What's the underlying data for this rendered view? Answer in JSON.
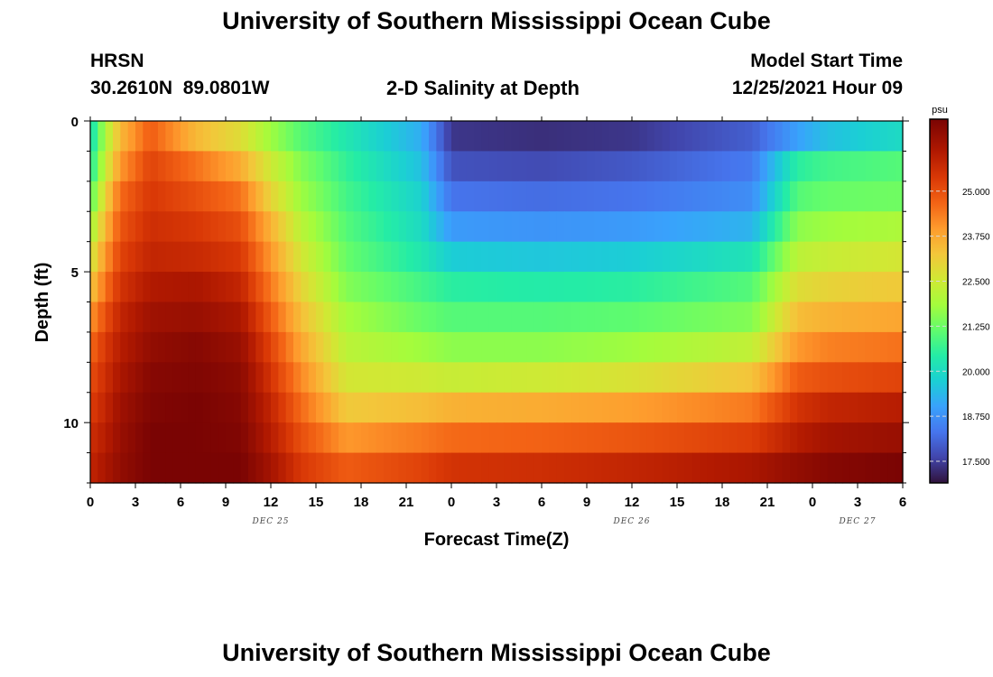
{
  "header": {
    "title": "University of Southern Mississippi Ocean Cube",
    "station": "HRSN",
    "coords": "30.2610N  89.0801W",
    "subtitle": "2-D Salinity at Depth",
    "model_label": "Model Start Time",
    "model_time": "12/25/2021 Hour 09"
  },
  "footer": {
    "title": "University of Southern Mississippi Ocean Cube"
  },
  "chart_data": {
    "type": "heatmap",
    "title": "2-D Salinity at Depth",
    "xlabel": "Forecast Time(Z)",
    "ylabel": "Depth (ft)",
    "colorbar_unit": "psu",
    "x_tick_labels": [
      "0",
      "3",
      "6",
      "9",
      "12",
      "15",
      "18",
      "21",
      "0",
      "3",
      "6",
      "9",
      "12",
      "15",
      "18",
      "21",
      "0",
      "3",
      "6"
    ],
    "x_range_hours": [
      0,
      54
    ],
    "date_labels": [
      {
        "text": "DEC 25",
        "hour": 12
      },
      {
        "text": "DEC 26",
        "hour": 36
      },
      {
        "text": "DEC 27",
        "hour": 51
      }
    ],
    "y_ticks": [
      0,
      5,
      10
    ],
    "y_range_ft": [
      0,
      12
    ],
    "color_range_psu": [
      16.9,
      27.0
    ],
    "colorbar_ticks": [
      "25.000",
      "23.750",
      "22.500",
      "21.250",
      "20.000",
      "18.750",
      "17.500"
    ],
    "colorbar_tick_values": [
      25.0,
      23.75,
      22.5,
      21.25,
      20.0,
      18.75,
      17.5
    ],
    "depth_levels_ft": [
      0.5,
      1.5,
      2.5,
      3.5,
      4.5,
      5.5,
      6.5,
      7.5,
      8.5,
      9.5,
      10.5,
      11.5
    ],
    "salinity_psu": {
      "by_depth_hour_keypoints": [
        {
          "depth_ft": 0.5,
          "h": [
            0,
            1,
            2,
            4,
            7,
            10,
            12,
            14,
            17,
            22,
            24,
            30,
            36,
            44,
            47,
            49,
            54
          ],
          "v": [
            20.0,
            22.0,
            23.5,
            24.8,
            23.5,
            22.8,
            21.8,
            21.0,
            20.3,
            19.2,
            17.4,
            17.3,
            17.4,
            18.0,
            19.0,
            19.5,
            20.0
          ]
        },
        {
          "depth_ft": 1.5,
          "h": [
            0,
            1,
            2,
            4,
            7,
            10,
            12,
            14,
            17,
            22,
            24,
            30,
            36,
            44,
            47,
            49,
            54
          ],
          "v": [
            20.3,
            22.4,
            24.0,
            25.2,
            24.5,
            23.7,
            22.5,
            21.5,
            20.6,
            19.5,
            17.8,
            17.7,
            17.9,
            18.4,
            20.5,
            20.8,
            21.0
          ]
        },
        {
          "depth_ft": 2.5,
          "h": [
            0,
            1,
            2,
            4,
            7,
            10,
            12,
            14,
            17,
            22,
            24,
            30,
            36,
            44,
            47,
            49,
            54
          ],
          "v": [
            21.0,
            23.0,
            24.6,
            25.4,
            25.0,
            24.5,
            23.0,
            21.8,
            20.8,
            19.8,
            18.3,
            18.2,
            18.3,
            18.7,
            21.0,
            21.2,
            21.3
          ]
        },
        {
          "depth_ft": 3.5,
          "h": [
            0,
            1,
            2,
            4,
            7,
            10,
            12,
            14,
            17,
            22,
            24,
            30,
            36,
            44,
            47,
            49,
            54
          ],
          "v": [
            21.8,
            23.5,
            24.9,
            25.6,
            25.4,
            25.0,
            23.6,
            22.2,
            21.0,
            20.0,
            18.9,
            18.8,
            18.9,
            19.3,
            21.6,
            21.8,
            22.0
          ]
        },
        {
          "depth_ft": 4.5,
          "h": [
            0,
            1,
            2,
            4,
            7,
            10,
            12,
            14,
            17,
            22,
            24,
            30,
            36,
            44,
            47,
            49,
            54
          ],
          "v": [
            22.5,
            24.0,
            25.2,
            25.8,
            25.7,
            25.4,
            24.0,
            22.6,
            21.2,
            20.3,
            19.7,
            19.6,
            19.7,
            20.2,
            22.2,
            22.4,
            22.6
          ]
        },
        {
          "depth_ft": 5.5,
          "h": [
            0,
            1,
            2,
            4,
            7,
            10,
            12,
            14,
            17,
            22,
            24,
            30,
            36,
            44,
            47,
            49,
            54
          ],
          "v": [
            23.2,
            24.5,
            25.5,
            26.1,
            26.2,
            25.8,
            24.4,
            23.0,
            21.5,
            20.8,
            20.5,
            20.4,
            20.5,
            21.0,
            22.8,
            23.0,
            23.2
          ]
        },
        {
          "depth_ft": 6.5,
          "h": [
            0,
            1,
            2,
            4,
            7,
            10,
            12,
            14,
            17,
            22,
            24,
            30,
            36,
            44,
            47,
            49,
            54
          ],
          "v": [
            24.0,
            25.0,
            25.8,
            26.4,
            26.5,
            26.2,
            24.8,
            23.4,
            21.9,
            21.2,
            21.0,
            21.0,
            21.1,
            21.5,
            23.4,
            23.6,
            23.8
          ]
        },
        {
          "depth_ft": 7.5,
          "h": [
            0,
            1,
            2,
            4,
            7,
            10,
            12,
            14,
            17,
            22,
            24,
            30,
            36,
            44,
            47,
            49,
            54
          ],
          "v": [
            24.6,
            25.4,
            26.0,
            26.6,
            26.8,
            26.5,
            25.2,
            23.8,
            22.2,
            21.8,
            21.6,
            21.6,
            21.8,
            22.3,
            24.0,
            24.3,
            24.5
          ]
        },
        {
          "depth_ft": 8.5,
          "h": [
            0,
            1,
            2,
            4,
            7,
            10,
            12,
            14,
            17,
            22,
            24,
            30,
            36,
            44,
            47,
            49,
            54
          ],
          "v": [
            25.0,
            25.6,
            26.2,
            26.8,
            26.9,
            26.7,
            25.5,
            24.2,
            22.6,
            22.5,
            22.4,
            22.5,
            22.7,
            23.3,
            24.8,
            25.0,
            25.2
          ]
        },
        {
          "depth_ft": 9.5,
          "h": [
            0,
            1,
            2,
            4,
            7,
            10,
            12,
            14,
            17,
            22,
            24,
            30,
            36,
            44,
            47,
            49,
            54
          ],
          "v": [
            25.3,
            25.8,
            26.4,
            26.9,
            27.0,
            26.8,
            25.8,
            24.6,
            23.2,
            23.4,
            23.6,
            23.7,
            23.9,
            24.4,
            25.5,
            25.8,
            26.0
          ]
        },
        {
          "depth_ft": 10.5,
          "h": [
            0,
            1,
            2,
            4,
            7,
            10,
            12,
            14,
            17,
            22,
            24,
            30,
            36,
            44,
            47,
            49,
            54
          ],
          "v": [
            25.6,
            26.0,
            26.5,
            27.0,
            27.0,
            26.9,
            26.0,
            25.0,
            24.0,
            24.4,
            24.6,
            24.7,
            24.9,
            25.3,
            26.0,
            26.3,
            26.5
          ]
        },
        {
          "depth_ft": 11.5,
          "h": [
            0,
            1,
            2,
            4,
            7,
            10,
            12,
            14,
            17,
            22,
            24,
            30,
            36,
            44,
            47,
            49,
            54
          ],
          "v": [
            25.8,
            26.2,
            26.6,
            27.0,
            27.0,
            27.0,
            26.3,
            25.4,
            24.8,
            25.2,
            25.5,
            25.6,
            25.8,
            26.2,
            26.6,
            26.8,
            27.0
          ]
        }
      ]
    }
  }
}
